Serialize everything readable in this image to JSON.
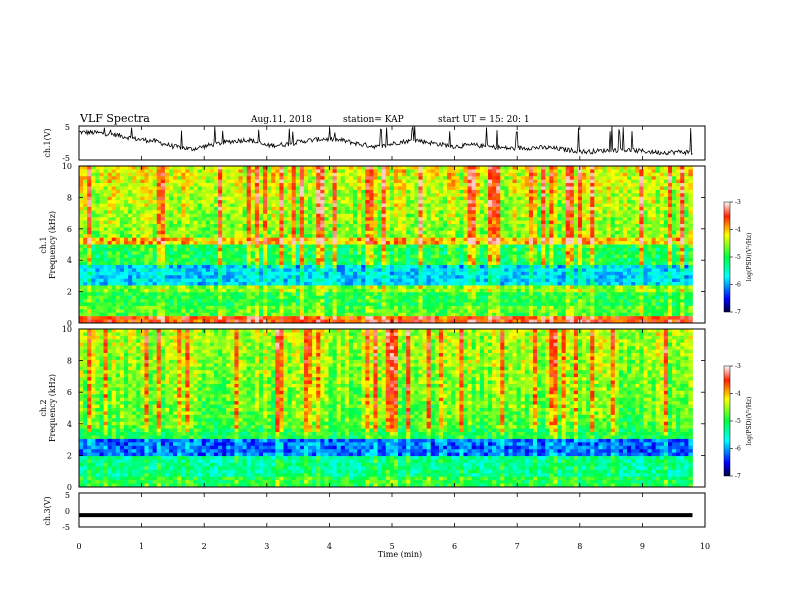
{
  "header": {
    "title": "VLF Spectra",
    "date": "Aug.11, 2018",
    "station": "station= KAP",
    "start": "start  UT =   15: 20: 1"
  },
  "colorbar_label": "log(PSD)(V²/Hz)",
  "chart_data": [
    {
      "type": "line",
      "name": "ch1-waveform",
      "ylabel": "ch.1(V)",
      "ylim": [
        -5,
        5
      ],
      "yticks": [
        "5",
        "-5"
      ],
      "xlim": [
        0,
        10
      ],
      "x": [
        0,
        0.3,
        0.6,
        0.9,
        1.2,
        1.5,
        1.8,
        2.1,
        2.4,
        2.7,
        3.0,
        3.3,
        3.6,
        3.9,
        4.2,
        4.5,
        4.8,
        5.1,
        5.4,
        5.7,
        6.0,
        6.3,
        6.6,
        6.9,
        7.2,
        7.5,
        7.8,
        8.1,
        8.4,
        8.7,
        9.0,
        9.3,
        9.6,
        9.8
      ],
      "y": [
        3.2,
        3.0,
        2.4,
        1.2,
        0.6,
        -1.0,
        -1.8,
        -0.6,
        0.4,
        1.0,
        -0.8,
        -0.4,
        0.6,
        1.2,
        0.8,
        -0.4,
        -1.2,
        0.2,
        0.8,
        -0.2,
        -1.0,
        -0.6,
        -1.2,
        -1.6,
        -1.4,
        -1.4,
        -2.0,
        -2.6,
        -2.2,
        -2.0,
        -2.4,
        -2.8,
        -2.6,
        -2.8
      ]
    },
    {
      "type": "heatmap",
      "name": "ch1-spectrogram",
      "ylabel_top": "ch.1",
      "ylabel": "Frequency (kHz)",
      "ylim": [
        0,
        10
      ],
      "yticks": [
        "0",
        "2",
        "4",
        "6",
        "8",
        "10"
      ],
      "xlim": [
        0,
        10
      ],
      "colorbar": {
        "min": -7,
        "max": -3,
        "ticks": [
          "-3",
          "-4",
          "-5",
          "-6",
          "-7"
        ]
      }
    },
    {
      "type": "heatmap",
      "name": "ch2-spectrogram",
      "ylabel_top": "ch.2",
      "ylabel": "Frequency (kHz)",
      "ylim": [
        0,
        10
      ],
      "yticks": [
        "0",
        "2",
        "4",
        "6",
        "8",
        "10"
      ],
      "xlim": [
        0,
        10
      ],
      "colorbar": {
        "min": -7,
        "max": -3,
        "ticks": [
          "-3",
          "-4",
          "-5",
          "-6",
          "-7"
        ]
      }
    },
    {
      "type": "line",
      "name": "ch3-waveform",
      "ylabel": "ch.3(V)",
      "ylim": [
        -5,
        5
      ],
      "yticks": [
        "5",
        "0",
        "-5"
      ],
      "xlim": [
        0,
        10
      ],
      "x": [
        0,
        9.8
      ],
      "y": [
        -1.5,
        -1.5
      ]
    }
  ],
  "xaxis": {
    "label": "Time (min)",
    "ticks": [
      "0",
      "1",
      "2",
      "3",
      "4",
      "5",
      "6",
      "7",
      "8",
      "9",
      "10"
    ]
  }
}
